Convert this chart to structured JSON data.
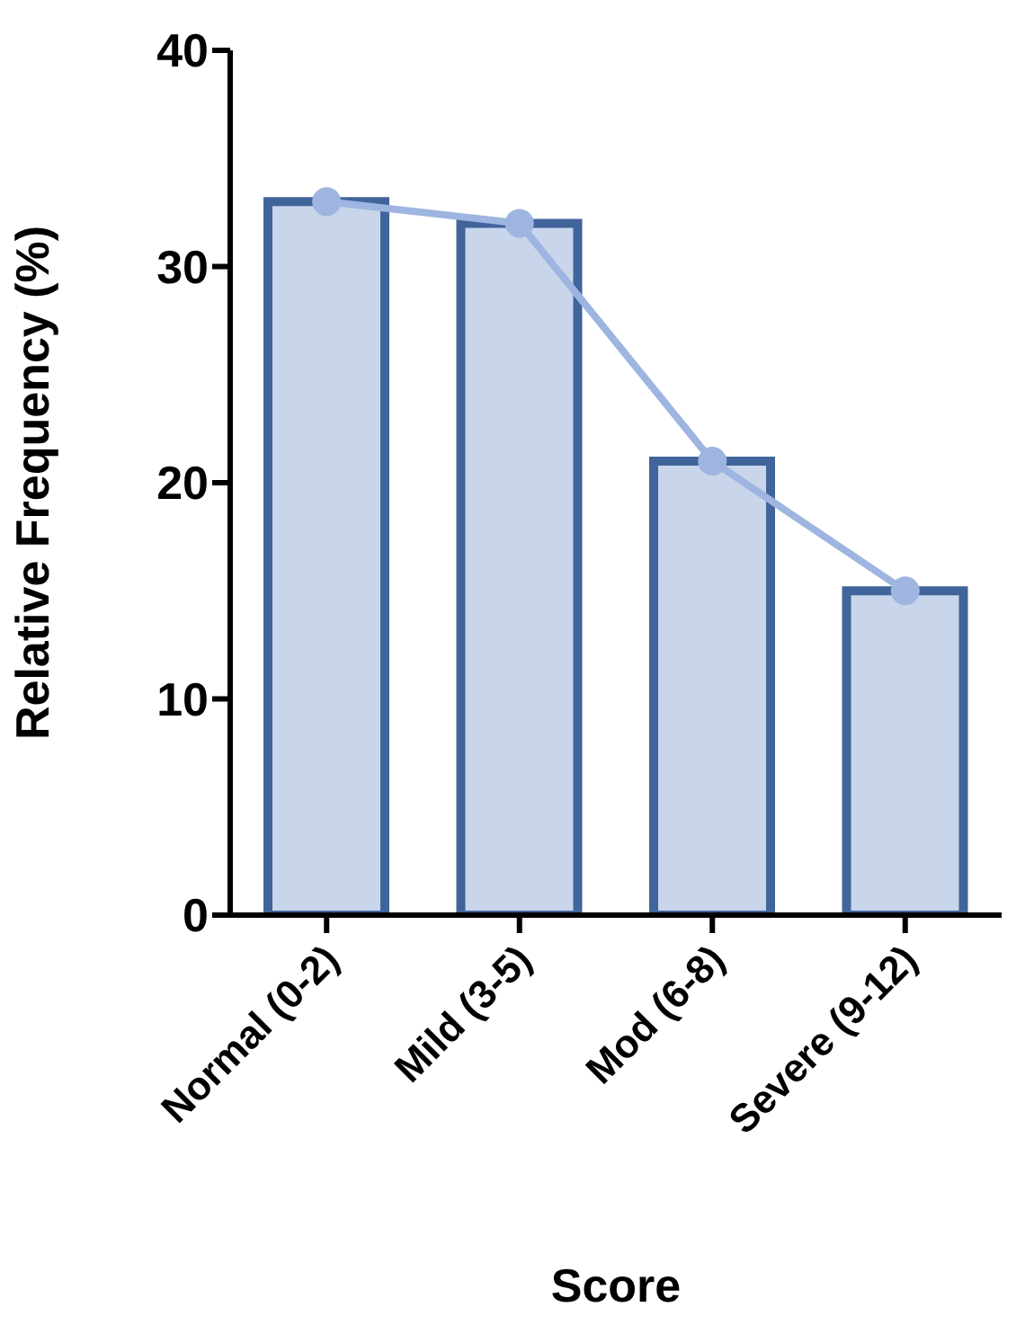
{
  "chart_data": {
    "type": "bar",
    "xlabel": "Score",
    "ylabel": "Relative Frequency (%)",
    "categories": [
      "Normal (0-2)",
      "Mild (3-5)",
      "Mod (6-8)",
      "Severe (9-12)"
    ],
    "series": [
      {
        "color": "#c8d5ea",
        "values": [
          33,
          32,
          21,
          15
        ]
      },
      {
        "type": "line",
        "color": "#9db5e0",
        "values": [
          33,
          32,
          21,
          15
        ],
        "marker": "circle",
        "line_style": "solid"
      }
    ],
    "ylim": [
      0,
      40
    ],
    "yticks": [
      0,
      10,
      20,
      30,
      40
    ]
  }
}
